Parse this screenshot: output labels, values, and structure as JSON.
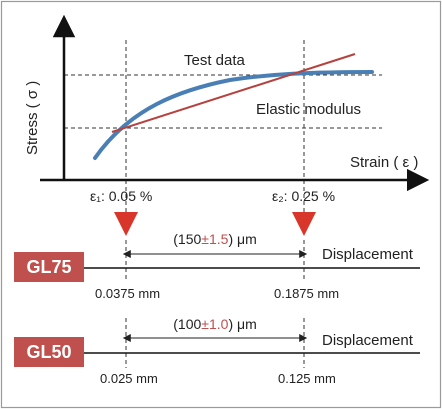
{
  "chart": {
    "y_axis_label": "Stress ( σ )",
    "x_axis_label": "Strain ( ε )",
    "series_test_label": "Test data",
    "series_modulus_label": "Elastic modulus",
    "marker1_label": "ε₁: 0.05 %",
    "marker2_label": "ε₂: 0.25 %"
  },
  "gauges": [
    {
      "name": "GL75",
      "span_prefix": "(150",
      "span_tol": "±1.5",
      "span_suffix": ") μm",
      "displacement_label": "Displacement",
      "left_value": "0.0375 mm",
      "right_value": "0.1875 mm"
    },
    {
      "name": "GL50",
      "span_prefix": "(100",
      "span_tol": "±1.0",
      "span_suffix": ") μm",
      "displacement_label": "Displacement",
      "left_value": "0.025 mm",
      "right_value": "0.125 mm"
    }
  ],
  "colors": {
    "test_curve": "#4a7fb5",
    "modulus_line": "#b5423f",
    "box_fill": "#c0504d",
    "tolerance": "#c0504d",
    "marker": "#d8362b",
    "frame": "#9a9a9a"
  }
}
